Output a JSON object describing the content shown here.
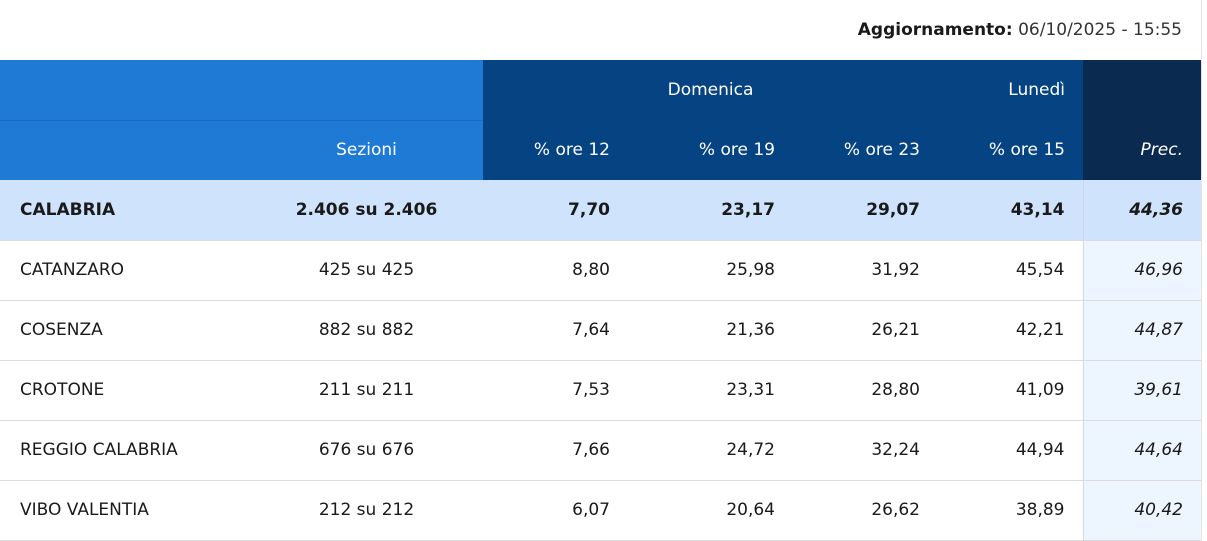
{
  "update": {
    "label": "Aggiornamento:",
    "value": "06/10/2025 - 15:55"
  },
  "header": {
    "day1": "Domenica",
    "day2": "Lunedì",
    "sezioni": "Sezioni",
    "ore12": "% ore 12",
    "ore19": "% ore 19",
    "ore23": "% ore 23",
    "ore15": "% ore 15",
    "prec": "Prec."
  },
  "total": {
    "name": "CALABRIA",
    "sezioni": "2.406 su 2.406",
    "ore12": "7,70",
    "ore19": "23,17",
    "ore23": "29,07",
    "ore15": "43,14",
    "prec": "44,36"
  },
  "rows": [
    {
      "name": "CATANZARO",
      "sezioni": "425 su 425",
      "ore12": "8,80",
      "ore19": "25,98",
      "ore23": "31,92",
      "ore15": "45,54",
      "prec": "46,96"
    },
    {
      "name": "COSENZA",
      "sezioni": "882 su 882",
      "ore12": "7,64",
      "ore19": "21,36",
      "ore23": "26,21",
      "ore15": "42,21",
      "prec": "44,87"
    },
    {
      "name": "CROTONE",
      "sezioni": "211 su 211",
      "ore12": "7,53",
      "ore19": "23,31",
      "ore23": "28,80",
      "ore15": "41,09",
      "prec": "39,61"
    },
    {
      "name": "REGGIO CALABRIA",
      "sezioni": "676 su 676",
      "ore12": "7,66",
      "ore19": "24,72",
      "ore23": "32,24",
      "ore15": "44,94",
      "prec": "44,64"
    },
    {
      "name": "VIBO VALENTIA",
      "sezioni": "212 su 212",
      "ore12": "6,07",
      "ore19": "20,64",
      "ore23": "26,62",
      "ore15": "38,89",
      "prec": "40,42"
    }
  ]
}
